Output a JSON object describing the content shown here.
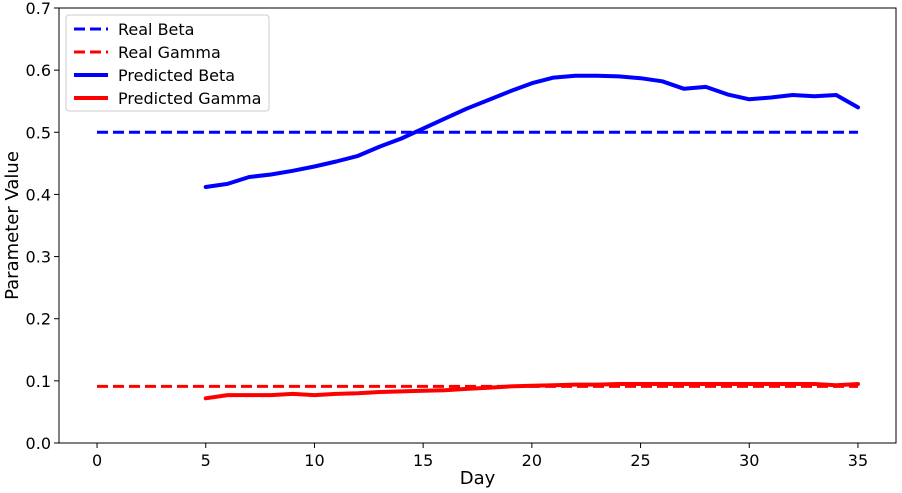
{
  "chart_data": {
    "type": "line",
    "xlabel": "Day",
    "ylabel": "Parameter Value",
    "xlim": [
      -1.75,
      36.75
    ],
    "ylim": [
      0.0,
      0.7
    ],
    "xticks": [
      0,
      5,
      10,
      15,
      20,
      25,
      30,
      35
    ],
    "yticks": [
      0.0,
      0.1,
      0.2,
      0.3,
      0.4,
      0.5,
      0.6,
      0.7
    ],
    "xtick_labels": [
      "0",
      "5",
      "10",
      "15",
      "20",
      "25",
      "30",
      "35"
    ],
    "ytick_labels": [
      "0.0",
      "0.1",
      "0.2",
      "0.3",
      "0.4",
      "0.5",
      "0.6",
      "0.7"
    ],
    "grid": false,
    "legend_position": "top-left",
    "series": [
      {
        "name": "Real Beta",
        "color": "#0000ff",
        "style": "dashed",
        "x": [
          0,
          35
        ],
        "values": [
          0.5,
          0.5
        ]
      },
      {
        "name": "Real Gamma",
        "color": "#ff0000",
        "style": "dashed",
        "x": [
          0,
          35
        ],
        "values": [
          0.091,
          0.091
        ]
      },
      {
        "name": "Predicted Beta",
        "color": "#0000ff",
        "style": "solid",
        "x": [
          5,
          6,
          7,
          8,
          9,
          10,
          11,
          12,
          13,
          14,
          15,
          16,
          17,
          18,
          19,
          20,
          21,
          22,
          23,
          24,
          25,
          26,
          27,
          28,
          29,
          30,
          31,
          32,
          33,
          34,
          35
        ],
        "values": [
          0.412,
          0.417,
          0.428,
          0.432,
          0.438,
          0.445,
          0.453,
          0.462,
          0.477,
          0.49,
          0.506,
          0.522,
          0.538,
          0.552,
          0.566,
          0.579,
          0.588,
          0.591,
          0.591,
          0.59,
          0.587,
          0.582,
          0.57,
          0.573,
          0.561,
          0.553,
          0.556,
          0.56,
          0.558,
          0.56,
          0.54
        ]
      },
      {
        "name": "Predicted Gamma",
        "color": "#ff0000",
        "style": "solid",
        "x": [
          5,
          6,
          7,
          8,
          9,
          10,
          11,
          12,
          13,
          14,
          15,
          16,
          17,
          18,
          19,
          20,
          21,
          22,
          23,
          24,
          25,
          26,
          27,
          28,
          29,
          30,
          31,
          32,
          33,
          34,
          35
        ],
        "values": [
          0.072,
          0.077,
          0.077,
          0.077,
          0.079,
          0.077,
          0.079,
          0.08,
          0.082,
          0.083,
          0.084,
          0.085,
          0.087,
          0.089,
          0.091,
          0.092,
          0.093,
          0.094,
          0.094,
          0.095,
          0.095,
          0.095,
          0.095,
          0.095,
          0.095,
          0.095,
          0.095,
          0.095,
          0.095,
          0.093,
          0.095
        ]
      }
    ]
  }
}
